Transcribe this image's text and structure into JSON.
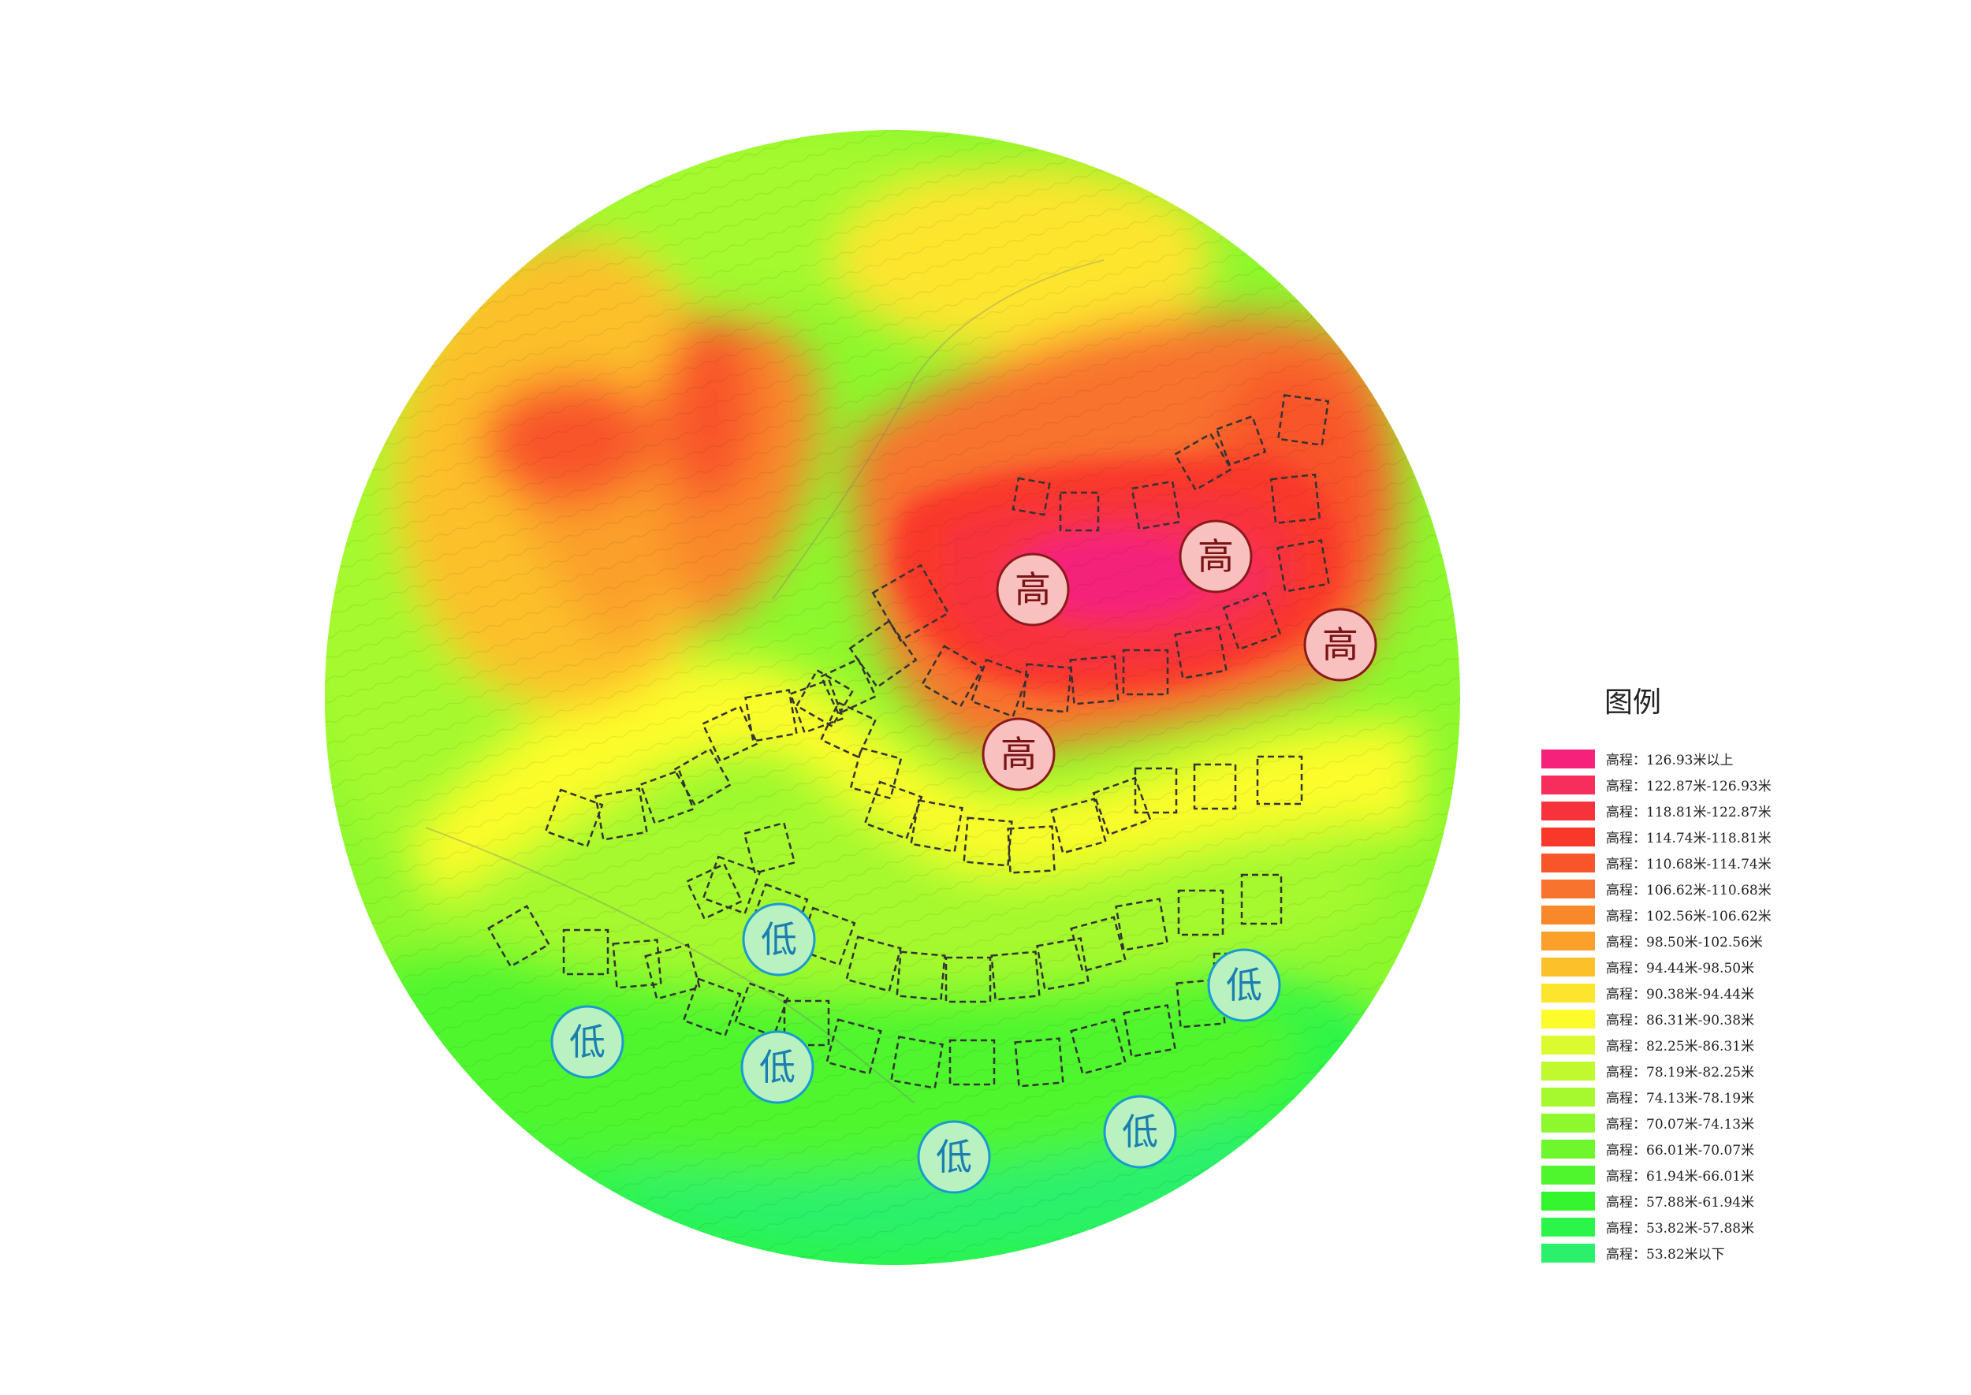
{
  "legend": {
    "title": "图例",
    "items": [
      {
        "label": "高程：126.93米以上",
        "color": "#f5217a"
      },
      {
        "label": "高程：122.87米-126.93米",
        "color": "#f72d5c"
      },
      {
        "label": "高程：118.81米-122.87米",
        "color": "#f8323c"
      },
      {
        "label": "高程：114.74米-118.81米",
        "color": "#f93829"
      },
      {
        "label": "高程：110.68米-114.74米",
        "color": "#f8552b"
      },
      {
        "label": "高程：106.62米-110.68米",
        "color": "#f8732d"
      },
      {
        "label": "高程：102.56米-106.62米",
        "color": "#f9882a"
      },
      {
        "label": "高程：98.50米-102.56米",
        "color": "#fba02a"
      },
      {
        "label": "高程：94.44米-98.50米",
        "color": "#fcc02a"
      },
      {
        "label": "高程：90.38米-94.44米",
        "color": "#fde52d"
      },
      {
        "label": "高程：86.31米-90.38米",
        "color": "#fcfc2c"
      },
      {
        "label": "高程：82.25米-86.31米",
        "color": "#dcfb2e"
      },
      {
        "label": "高程：78.19米-82.25米",
        "color": "#c0fa2e"
      },
      {
        "label": "高程：74.13米-78.19米",
        "color": "#a5f92e"
      },
      {
        "label": "高程：70.07米-74.13米",
        "color": "#8cf82d"
      },
      {
        "label": "高程：66.01米-70.07米",
        "color": "#6ef72d"
      },
      {
        "label": "高程：61.94米-66.01米",
        "color": "#4ff62d"
      },
      {
        "label": "高程：57.88米-61.94米",
        "color": "#33f62f"
      },
      {
        "label": "高程：53.82米-57.88米",
        "color": "#2bf54a"
      },
      {
        "label": "高程：53.82米以下",
        "color": "#2af06d"
      }
    ]
  },
  "markers": {
    "high_label": "高",
    "low_label": "低",
    "high_fill": "#f9c0c0",
    "high_stroke": "#8b1a1a",
    "high_text": "#7a1414",
    "low_fill": "#b9f2c0",
    "low_stroke": "#1a9bd0",
    "low_text": "#1a7fb0"
  }
}
